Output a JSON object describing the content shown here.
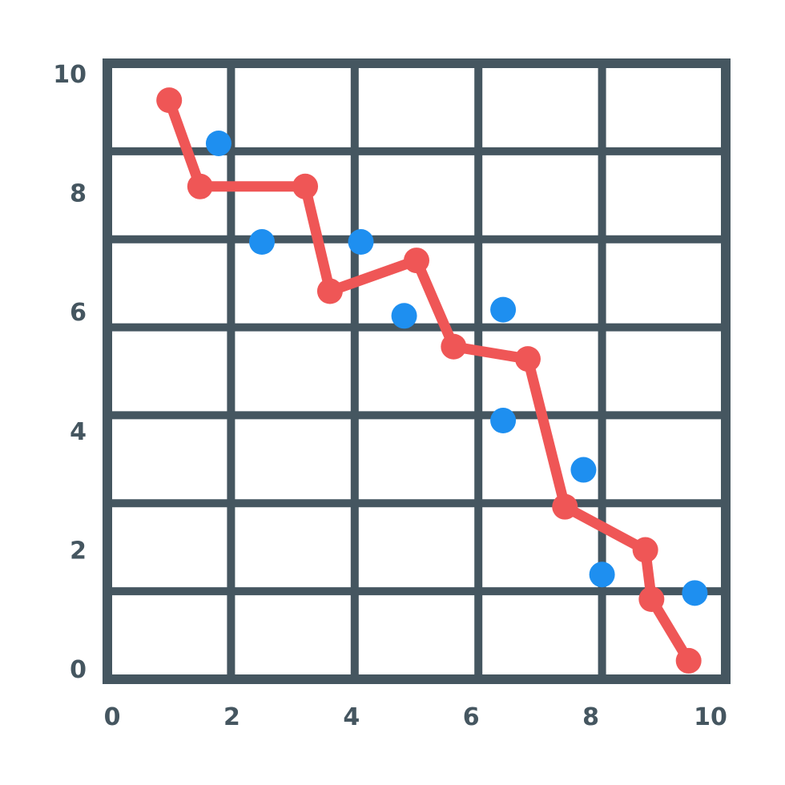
{
  "chart_data": {
    "type": "scatter",
    "title": "",
    "xlabel": "",
    "ylabel": "",
    "xlim": [
      0,
      10
    ],
    "ylim": [
      0,
      10
    ],
    "x_ticks": [
      "0",
      "2",
      "4",
      "6",
      "8",
      "10"
    ],
    "y_ticks": [
      "0",
      "2",
      "4",
      "6",
      "8",
      "10"
    ],
    "grid": true,
    "grid_columns": 5,
    "grid_rows": 7,
    "colors": {
      "grid": "#455660",
      "line": "#ef5656",
      "scatter": "#1e8ff0"
    },
    "series": [
      {
        "type": "line",
        "points": [
          [
            1.0,
            9.4
          ],
          [
            1.5,
            8.0
          ],
          [
            3.2,
            8.0
          ],
          [
            3.6,
            6.3
          ],
          [
            5.0,
            6.8
          ],
          [
            5.6,
            5.4
          ],
          [
            6.8,
            5.2
          ],
          [
            7.4,
            2.8
          ],
          [
            8.7,
            2.1
          ],
          [
            8.8,
            1.3
          ],
          [
            9.4,
            0.3
          ]
        ]
      },
      {
        "type": "scatter",
        "points": [
          [
            1.8,
            8.7
          ],
          [
            2.5,
            7.1
          ],
          [
            4.1,
            7.1
          ],
          [
            4.8,
            5.9
          ],
          [
            6.4,
            6.0
          ],
          [
            6.4,
            4.2
          ],
          [
            7.7,
            3.4
          ],
          [
            8.0,
            1.7
          ],
          [
            9.5,
            1.4
          ]
        ]
      }
    ]
  }
}
